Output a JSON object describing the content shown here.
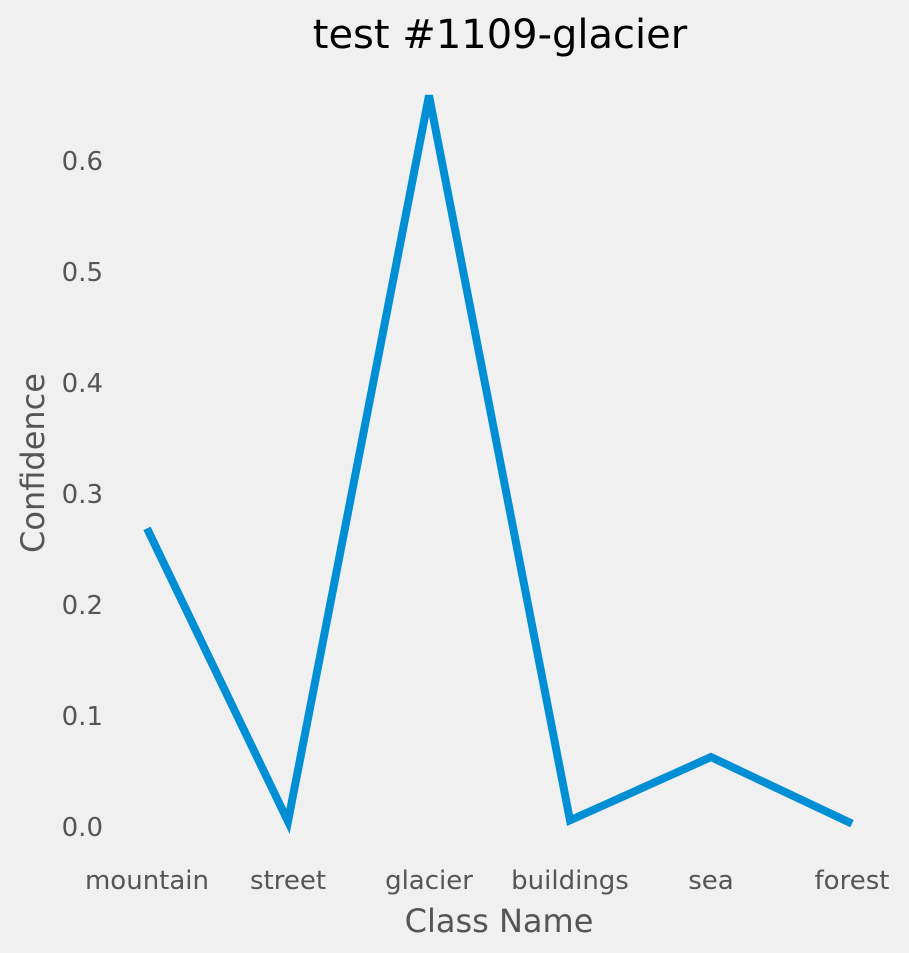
{
  "chart_data": {
    "type": "line",
    "title": "test #1109-glacier",
    "xlabel": "Class Name",
    "ylabel": "Confidence",
    "categories": [
      "mountain",
      "street",
      "glacier",
      "buildings",
      "sea",
      "forest"
    ],
    "series": [
      {
        "values": [
          0.269,
          0.005,
          0.659,
          0.006,
          0.063,
          0.003
        ]
      }
    ],
    "ylim": [
      -0.03,
      0.68
    ],
    "yticks": [
      "0.0",
      "0.1",
      "0.2",
      "0.3",
      "0.4",
      "0.5",
      "0.6"
    ],
    "grid": false,
    "legend": "none",
    "colors": {
      "line": "#008fd5",
      "background": "#f0f0f0",
      "text": "#555555",
      "title": "#000000"
    }
  }
}
